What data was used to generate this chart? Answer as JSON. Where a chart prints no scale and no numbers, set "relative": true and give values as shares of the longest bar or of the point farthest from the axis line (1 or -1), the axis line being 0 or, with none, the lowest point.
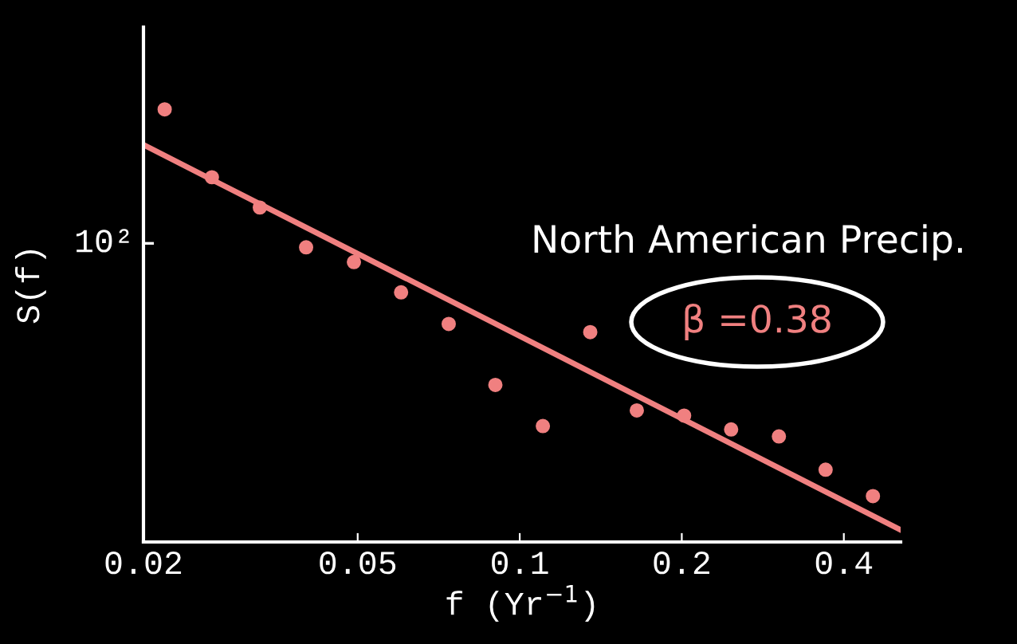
{
  "chart_data": {
    "type": "scatter",
    "xlabel": "f (Yr$^{−1}$)",
    "ylabel": "S(f)",
    "log": "x",
    "relative": true,
    "xlim": [
      0.02,
      0.51
    ],
    "xticks": [
      0.02,
      0.05,
      0.1,
      0.2,
      0.4
    ],
    "grid": false,
    "series": [
      {
        "color": "#f08080",
        "marker": "circle",
        "x": [
          0.0219,
          0.0268,
          0.0329,
          0.0401,
          0.0492,
          0.0602,
          0.0738,
          0.0901,
          0.1104,
          0.1352,
          0.165,
          0.202,
          0.247,
          0.303,
          0.37,
          0.453
        ],
        "values": [
          1,
          0.843,
          0.773,
          0.681,
          0.647,
          0.577,
          0.504,
          0.363,
          0.268,
          0.485,
          0.304,
          0.292,
          0.26,
          0.244,
          0.167,
          0.106
        ]
      },
      {
        "type": "line",
        "color": "#f08080",
        "line_style": "solid",
        "x": [
          0.02,
          0.51
        ],
        "values": [
          0.918,
          0.028
        ]
      }
    ],
    "annotations": [
      "North American Precip.",
      "β =0.38",
      "10²"
    ]
  }
}
